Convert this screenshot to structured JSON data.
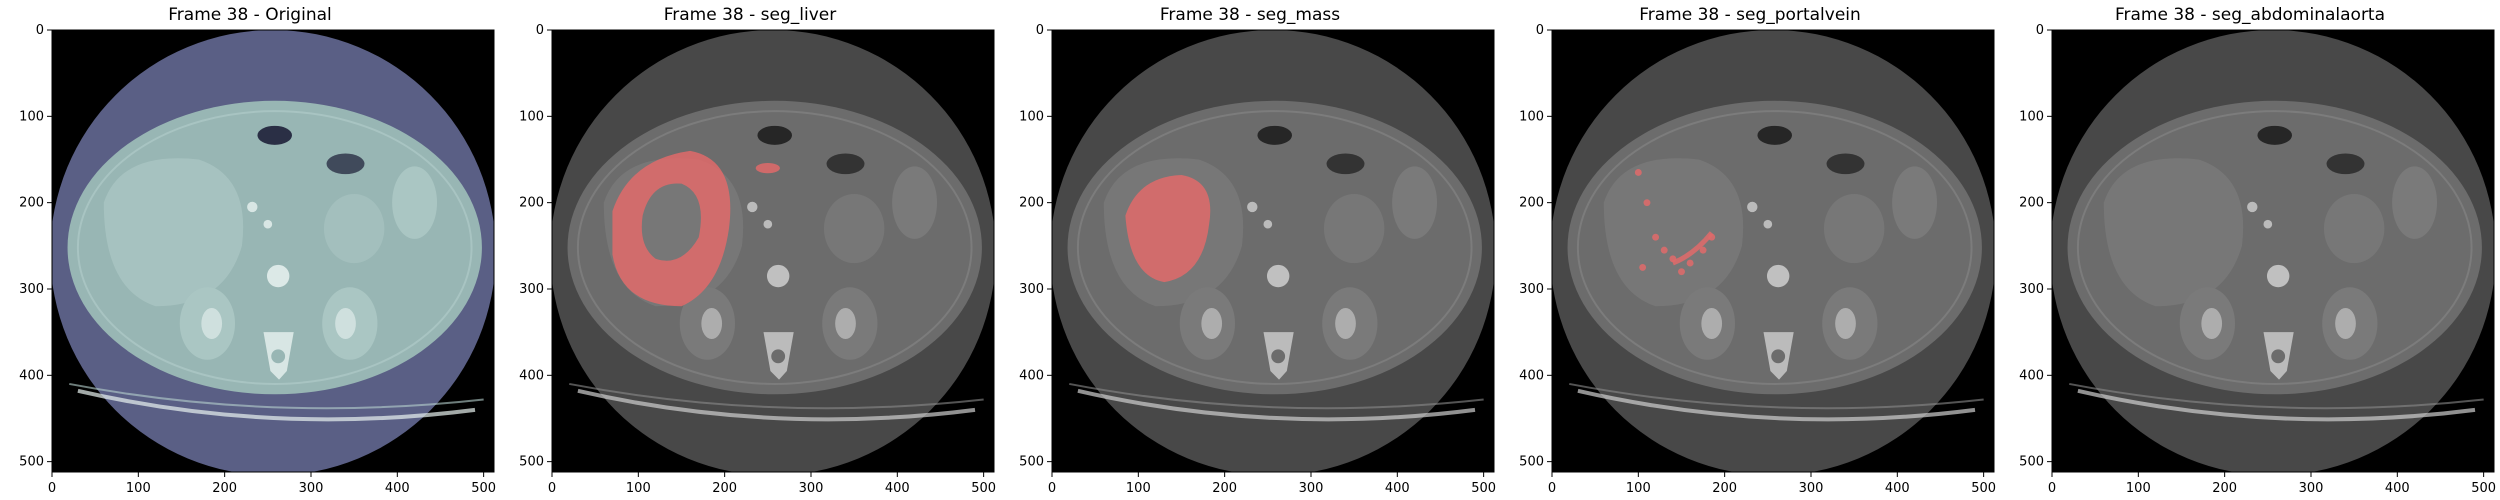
{
  "figure": {
    "panels": [
      {
        "title": "Frame 38 - Original",
        "mode": "original",
        "overlay": "none"
      },
      {
        "title": "Frame 38 - seg_liver",
        "mode": "gray",
        "overlay": "liver"
      },
      {
        "title": "Frame 38 - seg_mass",
        "mode": "gray",
        "overlay": "mass"
      },
      {
        "title": "Frame 38 - seg_portalvein",
        "mode": "gray",
        "overlay": "portalvein"
      },
      {
        "title": "Frame 38 - seg_abdominalaorta",
        "mode": "gray",
        "overlay": "none"
      }
    ],
    "x_ticks": [
      "0",
      "100",
      "200",
      "300",
      "400",
      "500"
    ],
    "y_ticks": [
      "0",
      "100",
      "200",
      "300",
      "400",
      "500"
    ],
    "axis_range": [
      0,
      512
    ],
    "colors": {
      "original_ring": "#5a5f85",
      "original_body": "#98b6b4",
      "original_organ": "#aac6c3",
      "gray_ring": "#484848",
      "gray_body": "#6c6c6c",
      "gray_organ": "#7a7a7a",
      "overlay": "#e06a6a"
    }
  }
}
